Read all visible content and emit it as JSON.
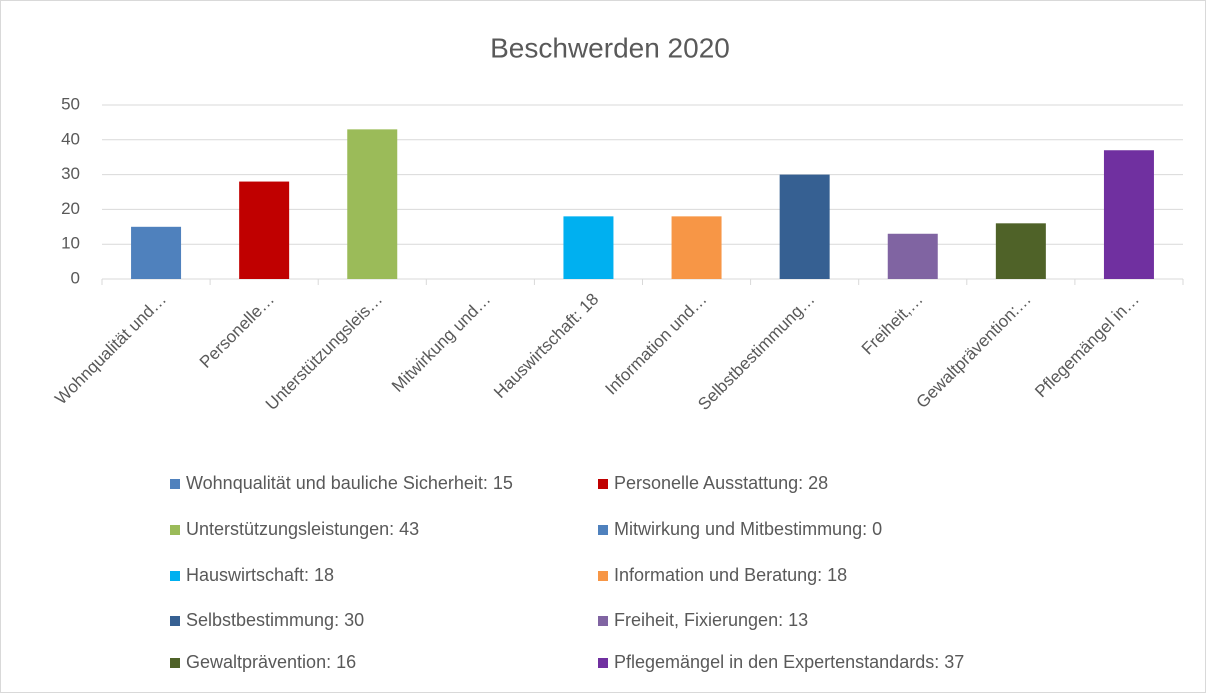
{
  "chart_data": {
    "type": "bar",
    "title": "Beschwerden 2020",
    "categories": [
      "Wohnqualität und…",
      "Personelle…",
      "Unterstützungsleis…",
      "Mitwirkung und…",
      "Hauswirtschaft: 18",
      "Information und…",
      "Selbstbestimmung…",
      "Freiheit,…",
      "Gewaltprävention:…",
      "Pflegemängel in…"
    ],
    "values": [
      15,
      28,
      43,
      0,
      18,
      18,
      30,
      13,
      16,
      37
    ],
    "colors": [
      "#4f81bd",
      "#c00000",
      "#9bbb59",
      "#4f81bd",
      "#00b0f0",
      "#f79646",
      "#366092",
      "#8064a2",
      "#4f6228",
      "#7030a0"
    ],
    "legend": [
      "Wohnqualität und bauliche Sicherheit: 15",
      "Personelle Ausstattung: 28",
      "Unterstützungsleistungen: 43",
      "Mitwirkung und Mitbestimmung: 0",
      "Hauswirtschaft: 18",
      "Information und Beratung: 18",
      "Selbstbestimmung: 30",
      "Freiheit, Fixierungen: 13",
      "Gewaltprävention: 16",
      "Pflegemängel in den Expertenstandards: 37"
    ],
    "ylim": [
      0,
      50
    ],
    "yticks": [
      0,
      10,
      20,
      30,
      40,
      50
    ],
    "grid": true
  }
}
